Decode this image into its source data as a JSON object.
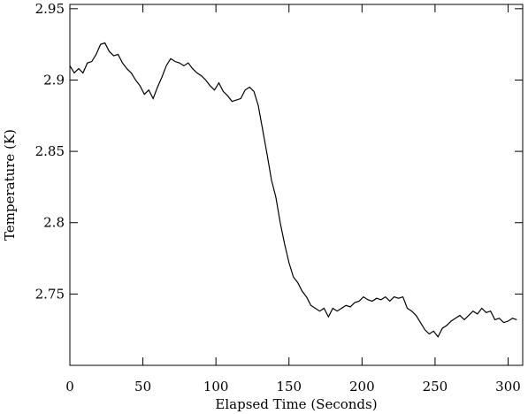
{
  "chart_data": {
    "type": "line",
    "x_label": "Elapsed Time (Seconds)",
    "y_label": "Temperature (K)",
    "xlim": [
      0,
      310
    ],
    "ylim": [
      2.7,
      2.953
    ],
    "xticks": [
      0,
      50,
      100,
      150,
      200,
      250,
      300
    ],
    "yticks": [
      2.75,
      2.8,
      2.85,
      2.9,
      2.95
    ],
    "x": [
      0,
      3,
      6,
      9,
      12,
      15,
      18,
      21,
      24,
      27,
      30,
      33,
      36,
      39,
      42,
      45,
      48,
      51,
      54,
      57,
      60,
      63,
      66,
      69,
      72,
      75,
      78,
      81,
      84,
      87,
      90,
      93,
      96,
      99,
      102,
      105,
      108,
      111,
      114,
      117,
      120,
      123,
      126,
      129,
      132,
      135,
      138,
      141,
      144,
      147,
      150,
      153,
      156,
      159,
      162,
      165,
      168,
      171,
      174,
      177,
      180,
      183,
      186,
      189,
      192,
      195,
      198,
      201,
      204,
      207,
      210,
      213,
      216,
      219,
      222,
      225,
      228,
      231,
      234,
      237,
      240,
      243,
      246,
      249,
      252,
      255,
      258,
      261,
      264,
      267,
      270,
      273,
      276,
      279,
      282,
      285,
      288,
      291,
      294,
      297,
      300,
      303,
      306
    ],
    "series": [
      {
        "color": "#000000",
        "values": [
          2.91,
          2.905,
          2.908,
          2.905,
          2.912,
          2.913,
          2.918,
          2.925,
          2.926,
          2.92,
          2.917,
          2.918,
          2.912,
          2.908,
          2.905,
          2.9,
          2.896,
          2.89,
          2.893,
          2.887,
          2.895,
          2.902,
          2.91,
          2.915,
          2.913,
          2.912,
          2.91,
          2.912,
          2.908,
          2.905,
          2.903,
          2.9,
          2.896,
          2.893,
          2.898,
          2.892,
          2.889,
          2.885,
          2.886,
          2.887,
          2.893,
          2.895,
          2.892,
          2.882,
          2.865,
          2.848,
          2.83,
          2.818,
          2.8,
          2.785,
          2.772,
          2.762,
          2.758,
          2.752,
          2.748,
          2.742,
          2.74,
          2.738,
          2.74,
          2.734,
          2.74,
          2.738,
          2.74,
          2.742,
          2.741,
          2.744,
          2.745,
          2.748,
          2.746,
          2.745,
          2.747,
          2.746,
          2.748,
          2.745,
          2.748,
          2.747,
          2.748,
          2.74,
          2.738,
          2.735,
          2.73,
          2.725,
          2.722,
          2.724,
          2.72,
          2.726,
          2.728,
          2.731,
          2.733,
          2.735,
          2.732,
          2.735,
          2.738,
          2.736,
          2.74,
          2.737,
          2.738,
          2.732,
          2.733,
          2.73,
          2.731,
          2.733,
          2.732
        ]
      }
    ]
  }
}
